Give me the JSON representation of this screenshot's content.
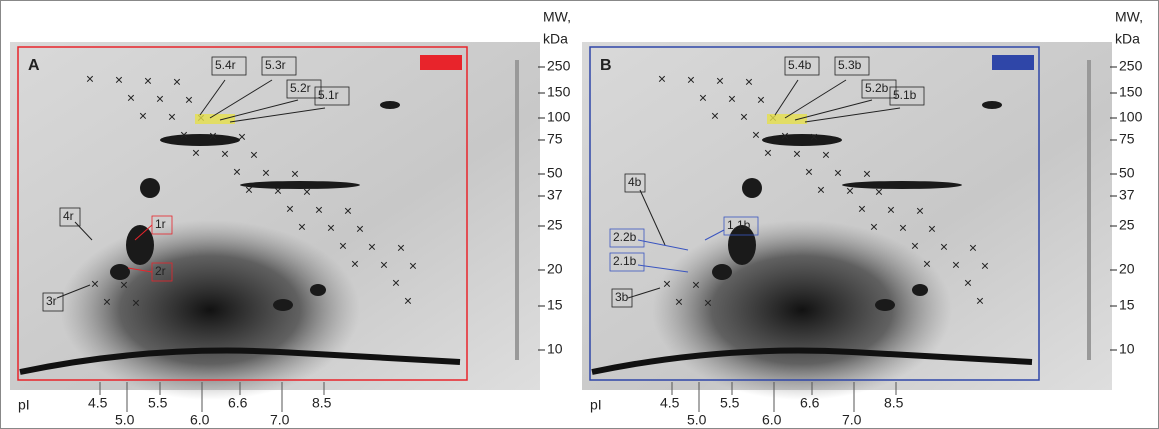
{
  "panels": [
    {
      "label": "A",
      "frame_color": "#e8242b",
      "spots": [
        {
          "text": "5.4r",
          "color": "#222"
        },
        {
          "text": "5.3r",
          "color": "#222"
        },
        {
          "text": "5.2r",
          "color": "#222"
        },
        {
          "text": "5.1r",
          "color": "#222"
        },
        {
          "text": "4r",
          "color": "#222"
        },
        {
          "text": "3r",
          "color": "#222"
        },
        {
          "text": "1r",
          "color": "#e8242b"
        },
        {
          "text": "2r",
          "color": "#e8242b"
        }
      ],
      "mw_title": [
        "MW,",
        "kDa"
      ],
      "mw": [
        "250",
        "150",
        "100",
        "75",
        "50",
        "37",
        "25",
        "20",
        "15",
        "10"
      ],
      "pi_title": "pI",
      "pi": [
        "4.5",
        "5.0",
        "5.5",
        "6.0",
        "6.6",
        "7.0",
        "8.5"
      ]
    },
    {
      "label": "B",
      "frame_color": "#2f46a8",
      "spots": [
        {
          "text": "5.4b",
          "color": "#222"
        },
        {
          "text": "5.3b",
          "color": "#222"
        },
        {
          "text": "5.2b",
          "color": "#222"
        },
        {
          "text": "5.1b",
          "color": "#222"
        },
        {
          "text": "4b",
          "color": "#222"
        },
        {
          "text": "3b",
          "color": "#222"
        },
        {
          "text": "2.2b",
          "color": "#3a55c0"
        },
        {
          "text": "2.1b",
          "color": "#3a55c0"
        },
        {
          "text": "1.1b",
          "color": "#3a55c0"
        }
      ],
      "mw_title": [
        "MW,",
        "kDa"
      ],
      "mw": [
        "250",
        "150",
        "100",
        "75",
        "50",
        "37",
        "25",
        "20",
        "15",
        "10"
      ],
      "pi_title": "pI",
      "pi": [
        "4.5",
        "5.0",
        "5.5",
        "6.0",
        "6.6",
        "7.0",
        "8.5"
      ]
    }
  ]
}
